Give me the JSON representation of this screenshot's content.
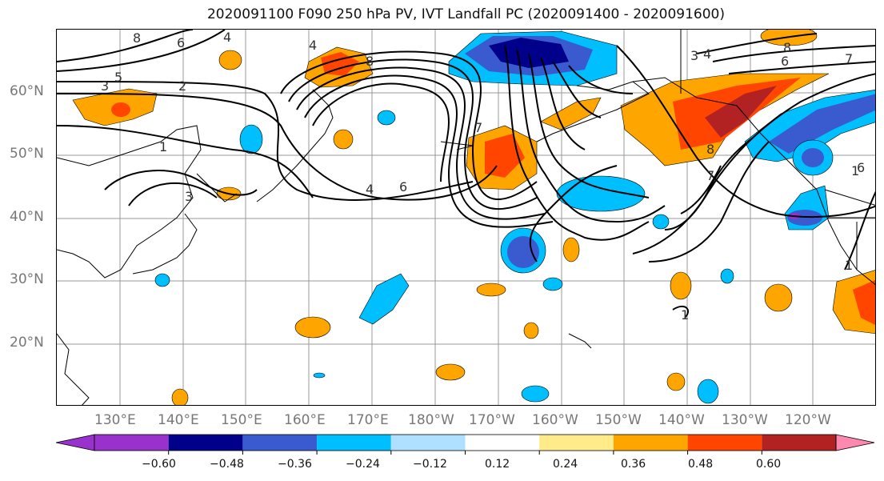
{
  "title": "2020091100 F090 250 hPa PV, IVT Landfall PC (2020091400 - 2020091600)",
  "lat_labels": [
    "60°N",
    "50°N",
    "40°N",
    "30°N",
    "20°N"
  ],
  "lon_labels": [
    "130°E",
    "140°E",
    "150°E",
    "160°E",
    "170°E",
    "180°W",
    "170°W",
    "160°W",
    "150°W",
    "140°W",
    "130°W",
    "120°W"
  ],
  "colorbar": {
    "colors": [
      "#9932CC",
      "#00008B",
      "#3A5BD0",
      "#00BFFF",
      "#B0E0FF",
      "#FFFFFF",
      "#FFEB8A",
      "#FFA500",
      "#FF4500",
      "#B22222",
      "#FF88B0"
    ],
    "ticks": [
      "−0.60",
      "−0.48",
      "−0.36",
      "−0.24",
      "−0.12",
      "0.12",
      "0.24",
      "0.36",
      "0.48",
      "0.60"
    ]
  },
  "contour_labels": [
    "8",
    "6",
    "4",
    "5",
    "3",
    "2",
    "1",
    "4",
    "6",
    "8",
    "7",
    "3",
    "4",
    "6",
    "7",
    "8",
    "8",
    "7",
    "6",
    "1",
    "1",
    "3",
    "4",
    "1"
  ],
  "colors": {
    "contour": "#000000",
    "grid": "#999999",
    "coast": "#000000"
  }
}
